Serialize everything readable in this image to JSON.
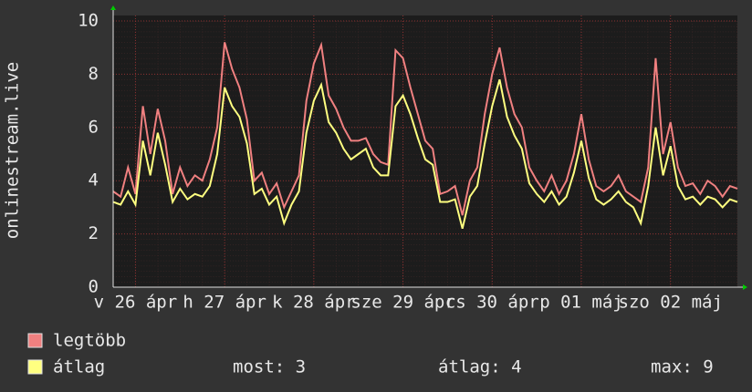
{
  "chart_data": {
    "type": "line",
    "y_label": "onlinestream.live",
    "x": [
      0,
      2,
      4,
      6,
      8,
      10,
      12,
      14,
      16,
      18,
      20,
      22,
      24,
      26,
      28,
      30,
      32,
      34,
      36,
      38,
      40,
      42,
      44,
      46,
      48,
      50,
      52,
      54,
      56,
      58,
      60,
      62,
      64,
      66,
      68,
      70,
      72,
      74,
      76,
      78,
      80,
      82,
      84,
      86,
      88,
      90,
      92,
      94,
      96,
      98,
      100,
      102,
      104,
      106,
      108,
      110,
      112,
      114,
      116,
      118,
      120,
      122,
      124,
      126,
      128,
      130,
      132,
      134,
      136,
      138,
      140,
      142,
      144,
      146,
      148,
      150,
      152,
      154,
      156,
      158,
      160,
      162,
      164,
      166,
      168
    ],
    "series": [
      {
        "name": "legtöbb",
        "color": "#f08080",
        "values": [
          3.6,
          3.4,
          4.5,
          3.5,
          6.8,
          5,
          6.7,
          5.5,
          3.5,
          4.5,
          3.8,
          4.2,
          4,
          4.8,
          6,
          9.2,
          8.2,
          7.5,
          6.3,
          4,
          4.3,
          3.5,
          3.9,
          3,
          3.6,
          4.2,
          7,
          8.4,
          9.1,
          7.2,
          6.7,
          6,
          5.5,
          5.5,
          5.6,
          5,
          4.7,
          4.6,
          8.9,
          8.6,
          7.5,
          6.5,
          5.5,
          5.2,
          3.5,
          3.6,
          3.8,
          2.7,
          4,
          4.5,
          6.5,
          8,
          9,
          7.5,
          6.5,
          6,
          4.5,
          4,
          3.6,
          4.2,
          3.5,
          4,
          5,
          6.5,
          4.8,
          3.8,
          3.6,
          3.8,
          4.2,
          3.6,
          3.4,
          3.2,
          4.5,
          8.6,
          5,
          6.2,
          4.5,
          3.8,
          3.9,
          3.5,
          4,
          3.8,
          3.4,
          3.8,
          3.7
        ]
      },
      {
        "name": "átlag",
        "color": "#ffff80",
        "values": [
          3.2,
          3.1,
          3.6,
          3.1,
          5.5,
          4.2,
          5.8,
          4.6,
          3.2,
          3.7,
          3.3,
          3.5,
          3.4,
          3.8,
          5,
          7.5,
          6.8,
          6.4,
          5.4,
          3.5,
          3.7,
          3.1,
          3.4,
          2.4,
          3.1,
          3.6,
          5.8,
          7,
          7.6,
          6.2,
          5.8,
          5.2,
          4.8,
          5,
          5.2,
          4.5,
          4.2,
          4.2,
          6.8,
          7.2,
          6.5,
          5.6,
          4.8,
          4.6,
          3.2,
          3.2,
          3.3,
          2.2,
          3.4,
          3.8,
          5.4,
          6.8,
          7.8,
          6.4,
          5.7,
          5.2,
          3.9,
          3.5,
          3.2,
          3.6,
          3.1,
          3.4,
          4.3,
          5.5,
          4.1,
          3.3,
          3.1,
          3.3,
          3.6,
          3.2,
          3,
          2.4,
          3.8,
          6,
          4.2,
          5.3,
          3.8,
          3.3,
          3.4,
          3.1,
          3.4,
          3.3,
          3,
          3.3,
          3.2
        ]
      }
    ],
    "xlim": [
      0,
      168
    ],
    "xticks": [
      {
        "value": 6,
        "label": "v 26 ápr"
      },
      {
        "value": 30,
        "label": "h 27 ápr"
      },
      {
        "value": 54,
        "label": "k 28 ápr"
      },
      {
        "value": 78,
        "label": "sze 29 ápr"
      },
      {
        "value": 102,
        "label": "cs 30 ápr"
      },
      {
        "value": 126,
        "label": "p 01 máj"
      },
      {
        "value": 150,
        "label": "szo 02 máj"
      }
    ],
    "ylim": [
      0,
      10
    ],
    "yticks": [
      0,
      2,
      4,
      6,
      8,
      10
    ],
    "grid": true,
    "stats": [
      "most: 3",
      "átlag: 4",
      "max: 9"
    ]
  }
}
